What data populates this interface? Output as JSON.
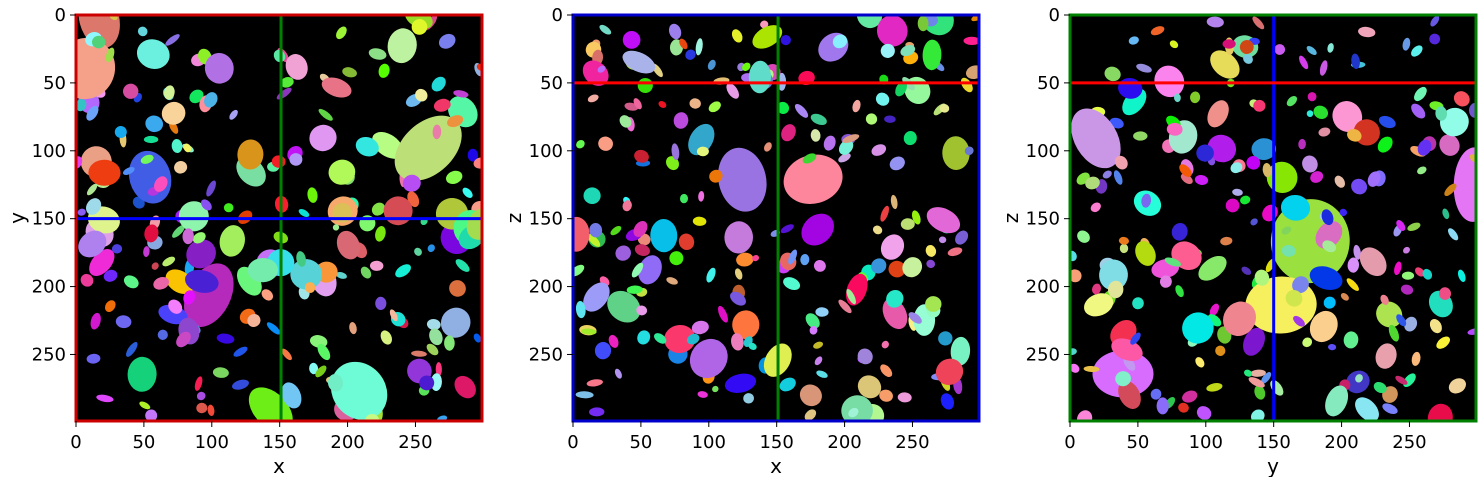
{
  "chart_data": [
    {
      "type": "heatmap",
      "view": "xy",
      "title": "",
      "xlabel": "x",
      "ylabel": "y",
      "xlim": [
        0,
        299
      ],
      "ylim": [
        299,
        0
      ],
      "xticks": [
        0,
        50,
        100,
        150,
        200,
        250
      ],
      "yticks": [
        0,
        50,
        100,
        150,
        200,
        250
      ],
      "frame_color": "#cc0000",
      "crosshair": {
        "vertical": {
          "value": 151,
          "color": "#008000"
        },
        "horizontal": {
          "value": 150,
          "color": "#0000ff"
        }
      },
      "seed": 11
    },
    {
      "type": "heatmap",
      "view": "xz",
      "title": "",
      "xlabel": "x",
      "ylabel": "z",
      "xlim": [
        0,
        299
      ],
      "ylim": [
        299,
        0
      ],
      "xticks": [
        0,
        50,
        100,
        150,
        200,
        250
      ],
      "yticks": [
        0,
        50,
        100,
        150,
        200,
        250
      ],
      "frame_color": "#0000cc",
      "crosshair": {
        "vertical": {
          "value": 151,
          "color": "#008000"
        },
        "horizontal": {
          "value": 50,
          "color": "#ff0000"
        }
      },
      "seed": 23
    },
    {
      "type": "heatmap",
      "view": "yz",
      "title": "",
      "xlabel": "y",
      "ylabel": "z",
      "xlim": [
        0,
        299
      ],
      "ylim": [
        299,
        0
      ],
      "xticks": [
        0,
        50,
        100,
        150,
        200,
        250
      ],
      "yticks": [
        0,
        50,
        100,
        150,
        200,
        250
      ],
      "frame_color": "#008000",
      "crosshair": {
        "vertical": {
          "value": 150,
          "color": "#0000ff"
        },
        "horizontal": {
          "value": 50,
          "color": "#ff0000"
        }
      },
      "seed": 37
    }
  ]
}
